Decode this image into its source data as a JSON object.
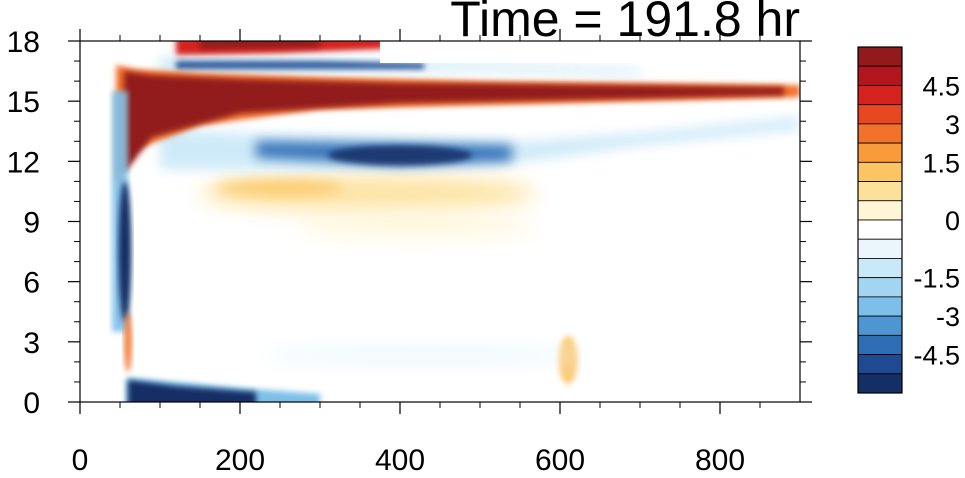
{
  "chart_data": {
    "type": "heatmap",
    "title": "Time = 191.8 hr",
    "xlabel": "",
    "ylabel": "",
    "xlim": [
      0,
      900
    ],
    "ylim": [
      0,
      18
    ],
    "x_ticks": [
      "0",
      "200",
      "400",
      "600",
      "800"
    ],
    "y_ticks": [
      "0",
      "3",
      "6",
      "9",
      "12",
      "15",
      "18"
    ],
    "colorbar": {
      "labels": [
        "4.5",
        "3",
        "1.5",
        "0",
        "-1.5",
        "-3",
        "-4.5"
      ],
      "levels": [
        5.25,
        4.5,
        3.75,
        3,
        2.25,
        1.5,
        0.75,
        0.25,
        -0.25,
        -0.75,
        -1.5,
        -2.25,
        -3,
        -3.75,
        -4.5,
        -5.25
      ],
      "colors": [
        "#921a1a",
        "#b3151f",
        "#d5221f",
        "#e8471f",
        "#f2722c",
        "#f99b3b",
        "#fcc463",
        "#fde19a",
        "#fff6d8",
        "#ffffff",
        "#eaf6fc",
        "#c9e8f8",
        "#a3d5f3",
        "#7dbfe9",
        "#4d96d1",
        "#2f6db5",
        "#1f4a92",
        "#132f66"
      ]
    },
    "features": [
      {
        "name": "upper-red-jet",
        "x": [
          60,
          900
        ],
        "y_center": 15.5,
        "sign": "positive",
        "max_abs": 6
      },
      {
        "name": "upper-red-band",
        "x": [
          120,
          380
        ],
        "y_center": 17.7,
        "sign": "positive",
        "max_abs": 6
      },
      {
        "name": "blue-band-below-jet",
        "x": [
          80,
          560
        ],
        "y_center": 12.5,
        "sign": "negative",
        "max_abs": 5
      },
      {
        "name": "blue-band-above-jet",
        "x": [
          100,
          500
        ],
        "y_center": 16.8,
        "sign": "negative",
        "max_abs": 5
      },
      {
        "name": "orange-mid-patch",
        "x": [
          160,
          600
        ],
        "y_center": 10.5,
        "sign": "positive",
        "max_abs": 2
      },
      {
        "name": "vertical-blue-strip",
        "x": [
          40,
          60
        ],
        "y": [
          3,
          16
        ],
        "sign": "negative",
        "max_abs": 5
      },
      {
        "name": "surface-blue-band",
        "x": [
          60,
          260
        ],
        "y_center": 0.3,
        "sign": "negative",
        "max_abs": 6
      }
    ]
  }
}
